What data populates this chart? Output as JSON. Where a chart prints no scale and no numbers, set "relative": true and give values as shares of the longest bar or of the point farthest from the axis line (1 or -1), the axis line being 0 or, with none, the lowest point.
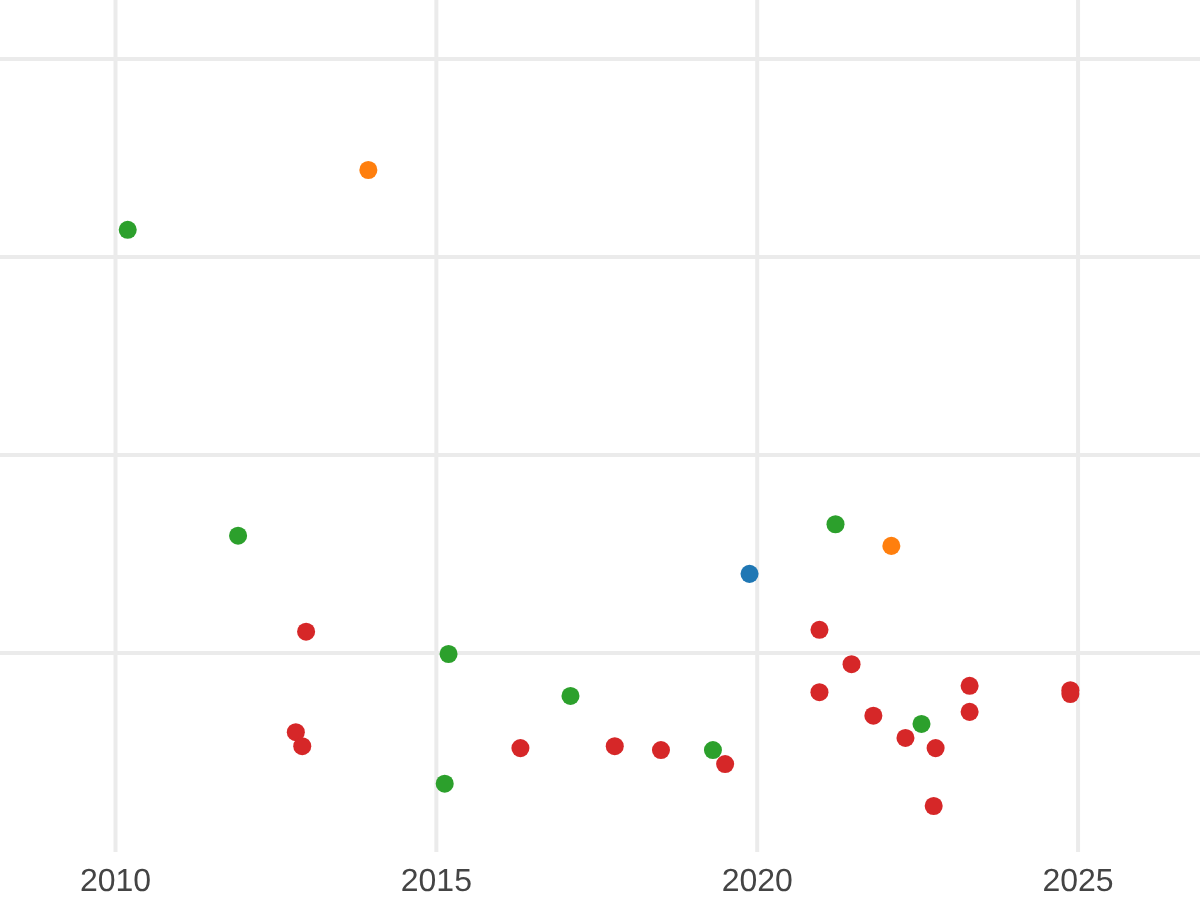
{
  "chart_data": {
    "type": "scatter",
    "relative": true,
    "grid": true,
    "marker": "circle",
    "xlim": [
      2008.2,
      2026.9
    ],
    "xticks": [
      2010,
      2015,
      2020,
      2025
    ],
    "series": [
      {
        "color": "#2ca02c",
        "x": [
          2010.19,
          2011.91,
          2015.19,
          2015.13,
          2017.09,
          2019.31,
          2021.22,
          2022.56
        ],
        "values": [
          0.906,
          0.425,
          0.239,
          0.035,
          0.173,
          0.088,
          0.443,
          0.129
        ]
      },
      {
        "color": "#ff7f0e",
        "x": [
          2013.94,
          2022.09
        ],
        "values": [
          1.0,
          0.409
        ]
      },
      {
        "color": "#1f77b4",
        "x": [
          2019.88
        ],
        "values": [
          0.365
        ]
      },
      {
        "color": "#d62728",
        "x": [
          2012.97,
          2012.81,
          2012.91,
          2016.31,
          2017.78,
          2018.5,
          2019.5,
          2020.97,
          2020.97,
          2021.47,
          2021.81,
          2022.31,
          2022.78,
          2022.75,
          2023.31,
          2023.31,
          2024.88,
          2024.88
        ],
        "values": [
          0.274,
          0.116,
          0.094,
          0.091,
          0.094,
          0.088,
          0.066,
          0.277,
          0.179,
          0.223,
          0.142,
          0.107,
          0.091,
          0,
          0.189,
          0.148,
          0.182,
          0.176
        ]
      }
    ]
  }
}
